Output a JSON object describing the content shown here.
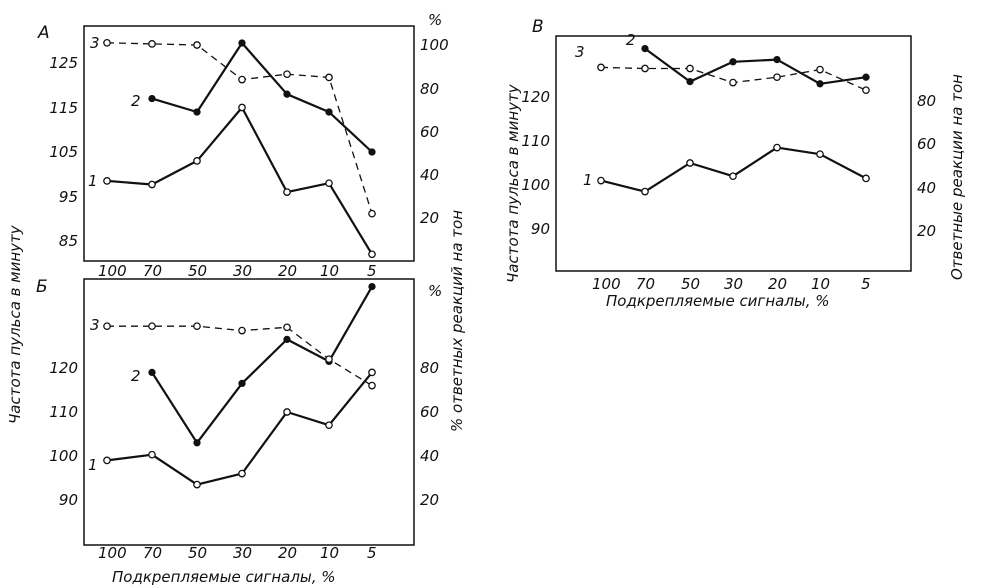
{
  "colors": {
    "ink": "#111111",
    "paper": "#ffffff"
  },
  "shared": {
    "xlabel": "Подкрепляемые сигналы, %",
    "ylabel_left": "Частота пульса в минуту",
    "ylabel_right": "% ответных реакций на тон",
    "ylabel_right_v": "Ответные реакции на тон",
    "percent_sign": "%"
  },
  "chart_data": [
    {
      "panel": "А",
      "type": "line",
      "categories": [
        "100",
        "70",
        "50",
        "30",
        "20",
        "10",
        "5"
      ],
      "y_left": {
        "label": "Частота пульса в минуту",
        "ticks": [
          "125",
          "115",
          "105",
          "95",
          "85"
        ]
      },
      "y_right": {
        "label": "% ответных реакций на тон",
        "unit": "%",
        "ticks": [
          "100",
          "80",
          "60",
          "40",
          "20"
        ]
      },
      "series": [
        {
          "name": "1",
          "axis": "left",
          "marker": "open",
          "style": "solid",
          "values": [
            98.5,
            97.7,
            103,
            115,
            96,
            98,
            82
          ]
        },
        {
          "name": "2",
          "axis": "left",
          "marker": "filled",
          "style": "solid",
          "values": [
            null,
            117,
            114,
            129.5,
            118,
            114,
            105
          ]
        },
        {
          "name": "3",
          "axis": "right",
          "marker": "open",
          "style": "dashed",
          "values": [
            101,
            100.5,
            100,
            84,
            86.5,
            85,
            22
          ]
        }
      ]
    },
    {
      "panel": "Б",
      "type": "line",
      "categories": [
        "100",
        "70",
        "50",
        "30",
        "20",
        "10",
        "5"
      ],
      "y_left": {
        "label": "Частота пульса в минуту",
        "ticks": [
          "120",
          "110",
          "100",
          "90"
        ]
      },
      "y_right": {
        "label": "% ответных реакций на тон",
        "unit": "%",
        "ticks": [
          "80",
          "60",
          "40",
          "20"
        ]
      },
      "series": [
        {
          "name": "1",
          "axis": "left",
          "marker": "open",
          "style": "solid",
          "values": [
            99,
            100.3,
            93.5,
            96,
            110,
            107,
            119
          ]
        },
        {
          "name": "2",
          "axis": "left",
          "marker": "filled",
          "style": "solid",
          "values": [
            null,
            119,
            103,
            116.5,
            126.5,
            121.5,
            138.5
          ]
        },
        {
          "name": "3",
          "axis": "right",
          "marker": "open",
          "style": "dashed",
          "values": [
            null,
            null,
            null,
            null,
            null,
            null,
            null
          ]
        }
      ]
    },
    {
      "panel": "В",
      "type": "line",
      "categories": [
        "100",
        "70",
        "50",
        "30",
        "20",
        "10",
        "5"
      ],
      "y_left": {
        "label": "Частота пульса в минуту",
        "ticks": [
          "120",
          "110",
          "100",
          "90"
        ]
      },
      "y_right": {
        "label": "Ответные реакции на тон",
        "ticks": [
          "80",
          "60",
          "40",
          "20"
        ]
      },
      "series": [
        {
          "name": "1",
          "axis": "left",
          "marker": "open",
          "style": "solid",
          "values": [
            101,
            98.5,
            105,
            102,
            108.5,
            107,
            101.5
          ]
        },
        {
          "name": "2",
          "axis": "left",
          "marker": "filled",
          "style": "solid",
          "values": [
            null,
            131,
            123.5,
            128,
            128.5,
            123,
            124.5
          ]
        },
        {
          "name": "3",
          "axis": "right",
          "marker": "open",
          "style": "dashed",
          "values": [
            null,
            null,
            null,
            null,
            null,
            null,
            null
          ]
        }
      ]
    }
  ]
}
